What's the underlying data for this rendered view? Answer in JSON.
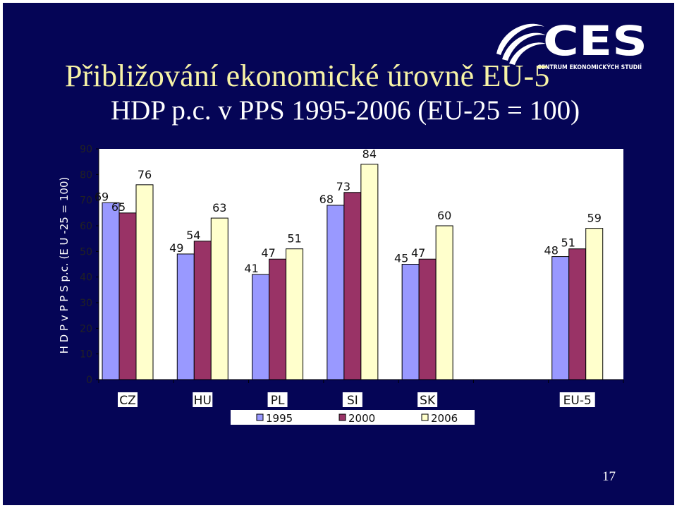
{
  "slide": {
    "title": "Přibližování ekonomické úrovně EU-5",
    "subtitle": "HDP p.c. v PPS 1995-2006 (EU-25 = 100)",
    "page_number": "17",
    "background_color": "#050556",
    "logo": {
      "text": "CES",
      "subtext": "CENTRUM EKONOMICKÝCH STUDIÍ",
      "icon": "globe-swoosh-icon"
    }
  },
  "chart_data": {
    "type": "bar",
    "title": "",
    "xlabel": "",
    "ylabel": "H D P  v P P S  p.c.  (E U -25 = 100)",
    "ylim": [
      0,
      90
    ],
    "yticks": [
      0,
      10,
      20,
      30,
      40,
      50,
      60,
      70,
      80,
      90
    ],
    "grid": false,
    "legend": "bottom",
    "categories": [
      "CZ",
      "HU",
      "PL",
      "SI",
      "SK",
      "",
      "EU-5"
    ],
    "series": [
      {
        "name": "1995",
        "color": "#9999ff",
        "values": [
          69,
          49,
          41,
          68,
          45,
          null,
          48
        ]
      },
      {
        "name": "2000",
        "color": "#993366",
        "values": [
          65,
          54,
          47,
          73,
          47,
          null,
          51
        ]
      },
      {
        "name": "2006",
        "color": "#ffffcc",
        "values": [
          76,
          63,
          51,
          84,
          60,
          null,
          59
        ]
      }
    ]
  }
}
